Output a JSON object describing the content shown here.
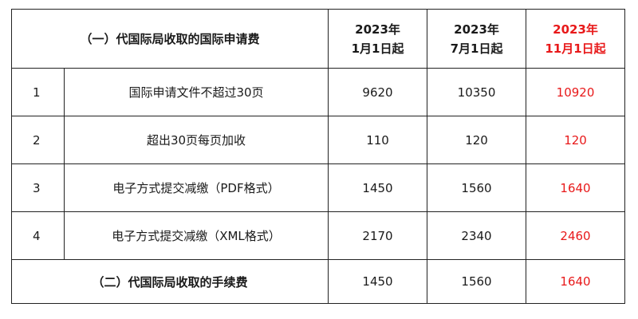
{
  "header": {
    "section_title": "（一）代国际局收取的国际申请费",
    "columns": [
      {
        "line1": "2023年",
        "line2": "1月1日起"
      },
      {
        "line1": "2023年",
        "line2": "7月1日起"
      },
      {
        "line1": "2023年",
        "line2": "11月1日起"
      }
    ]
  },
  "rows": [
    {
      "index": "1",
      "item": "国际申请文件不超过30页",
      "values": [
        "9620",
        "10350",
        "10920"
      ]
    },
    {
      "index": "2",
      "item": "超出30页每页加收",
      "values": [
        "110",
        "120",
        "120"
      ]
    },
    {
      "index": "3",
      "item": "电子方式提交减缴（PDF格式）",
      "values": [
        "1450",
        "1560",
        "1640"
      ]
    },
    {
      "index": "4",
      "item": "电子方式提交减缴（XML格式）",
      "values": [
        "2170",
        "2340",
        "2460"
      ]
    }
  ],
  "footer": {
    "section_title": "（二）代国际局收取的手续费",
    "values": [
      "1450",
      "1560",
      "1640"
    ]
  },
  "colors": {
    "highlight": "#e8191a",
    "text": "#1a1a1a",
    "border": "#222222"
  }
}
